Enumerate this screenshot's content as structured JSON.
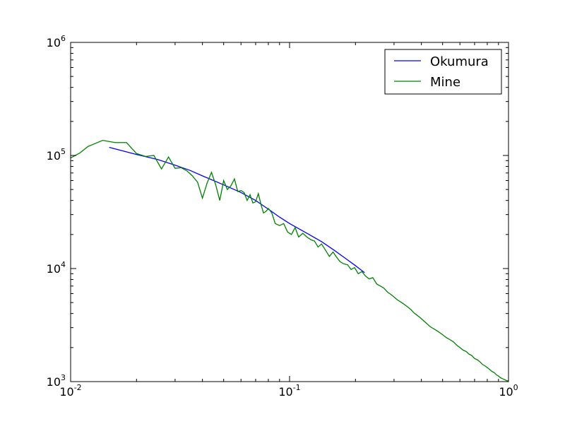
{
  "chart_data": {
    "type": "line",
    "x_scale": "log",
    "y_scale": "log",
    "xlim": [
      0.01,
      1
    ],
    "ylim": [
      1000,
      1000000
    ],
    "x_ticks": [
      {
        "value": 0.01,
        "base": "10",
        "exp": "-2"
      },
      {
        "value": 0.1,
        "base": "10",
        "exp": "-1"
      },
      {
        "value": 1,
        "base": "10",
        "exp": "0"
      }
    ],
    "y_ticks": [
      {
        "value": 1000,
        "base": "10",
        "exp": "3"
      },
      {
        "value": 10000,
        "base": "10",
        "exp": "4"
      },
      {
        "value": 100000,
        "base": "10",
        "exp": "5"
      },
      {
        "value": 1000000,
        "base": "10",
        "exp": "6"
      }
    ],
    "legend_position": "top-right",
    "series": [
      {
        "name": "Okumura",
        "color": "#0000ff",
        "x": [
          0.015,
          0.02,
          0.025,
          0.03,
          0.035,
          0.04,
          0.05,
          0.06,
          0.07,
          0.08,
          0.09,
          0.1,
          0.12,
          0.14,
          0.16,
          0.18,
          0.2,
          0.22
        ],
        "y": [
          118000,
          102000,
          92000,
          82000,
          74000,
          66000,
          55000,
          47000,
          40000,
          33500,
          28500,
          25000,
          20500,
          17300,
          14500,
          12300,
          10600,
          9200
        ]
      },
      {
        "name": "Mine",
        "color": "#008000",
        "x": [
          0.01,
          0.011,
          0.012,
          0.014,
          0.016,
          0.018,
          0.02,
          0.022,
          0.024,
          0.026,
          0.028,
          0.03,
          0.032,
          0.034,
          0.036,
          0.038,
          0.04,
          0.042,
          0.044,
          0.046,
          0.048,
          0.05,
          0.052,
          0.054,
          0.056,
          0.058,
          0.06,
          0.062,
          0.064,
          0.066,
          0.068,
          0.07,
          0.072,
          0.074,
          0.076,
          0.078,
          0.08,
          0.083,
          0.086,
          0.09,
          0.094,
          0.098,
          0.102,
          0.106,
          0.11,
          0.115,
          0.12,
          0.125,
          0.13,
          0.135,
          0.14,
          0.146,
          0.152,
          0.158,
          0.164,
          0.17,
          0.177,
          0.184,
          0.191,
          0.198,
          0.206,
          0.214,
          0.222,
          0.231,
          0.24,
          0.25,
          0.26,
          0.27,
          0.28,
          0.29,
          0.3,
          0.31,
          0.32,
          0.33,
          0.34,
          0.35,
          0.36,
          0.37,
          0.38,
          0.39,
          0.4,
          0.42,
          0.44,
          0.46,
          0.48,
          0.5,
          0.52,
          0.54,
          0.56,
          0.58,
          0.6,
          0.62,
          0.64,
          0.66,
          0.68,
          0.7,
          0.72,
          0.74,
          0.76,
          0.78,
          0.8,
          0.82,
          0.84,
          0.86,
          0.88,
          0.9,
          0.92,
          0.94,
          0.96,
          0.98,
          1.0
        ],
        "y": [
          95000,
          105000,
          120000,
          136000,
          130000,
          130000,
          104000,
          98000,
          100000,
          76000,
          97000,
          77000,
          78000,
          73000,
          66000,
          58000,
          42000,
          57000,
          71000,
          55000,
          40000,
          60000,
          50000,
          54000,
          62000,
          48000,
          49000,
          47000,
          40000,
          45000,
          38000,
          39000,
          46000,
          37000,
          31000,
          32000,
          34000,
          31000,
          25000,
          24000,
          25000,
          21000,
          20000,
          23000,
          19000,
          20500,
          19000,
          18000,
          17500,
          15500,
          16500,
          14500,
          12800,
          14000,
          12600,
          11500,
          11000,
          10800,
          9800,
          10200,
          9000,
          9400,
          8600,
          8100,
          8300,
          7300,
          7000,
          6700,
          6200,
          5900,
          5600,
          5300,
          5100,
          4900,
          4700,
          4500,
          4300,
          4050,
          3900,
          3750,
          3600,
          3300,
          3050,
          2900,
          2750,
          2600,
          2450,
          2350,
          2250,
          2100,
          2000,
          1900,
          1850,
          1750,
          1700,
          1600,
          1560,
          1500,
          1420,
          1380,
          1330,
          1280,
          1230,
          1200,
          1150,
          1120,
          1080,
          1060,
          1040,
          1020,
          1010
        ]
      }
    ]
  }
}
